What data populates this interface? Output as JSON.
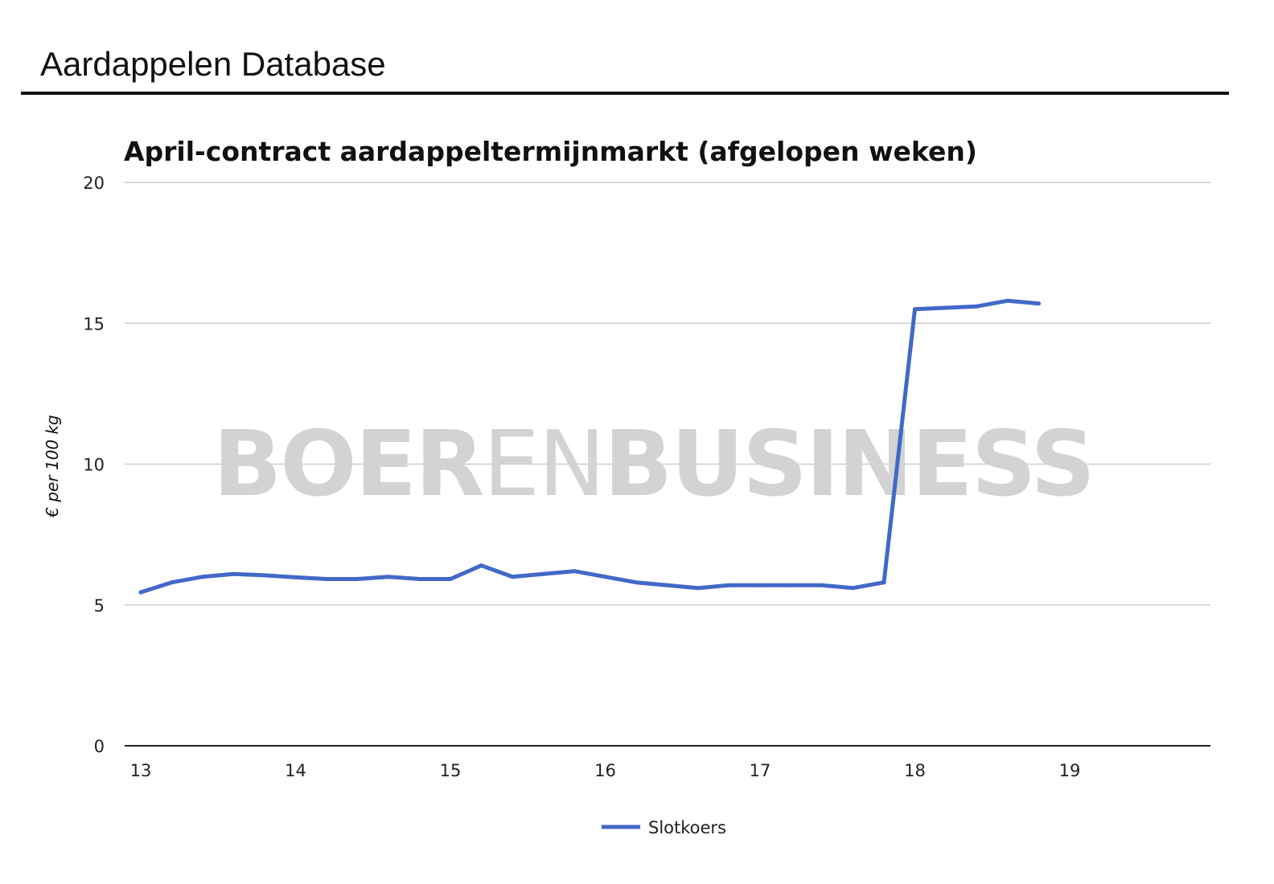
{
  "page": {
    "title": "Aardappelen Database"
  },
  "watermark": {
    "part1": "BOER",
    "part2": "EN",
    "part3": "BUSINESS"
  },
  "chart_data": {
    "type": "line",
    "title": "April-contract aardappeltermijnmarkt (afgelopen weken)",
    "xlabel": "",
    "ylabel": "€ per 100 kg",
    "xlim": [
      13,
      20
    ],
    "ylim": [
      0,
      20
    ],
    "x_ticks": [
      13,
      14,
      15,
      16,
      17,
      18,
      19
    ],
    "y_ticks": [
      0,
      5,
      10,
      15,
      20
    ],
    "grid": true,
    "legend_position": "bottom",
    "colors": {
      "series": "#4169C8",
      "grid": "#cccccc",
      "axis": "#222222"
    },
    "series": [
      {
        "name": "Slotkoers",
        "x": [
          13.0,
          13.2,
          13.4,
          13.6,
          13.8,
          14.0,
          14.2,
          14.4,
          14.6,
          14.8,
          15.0,
          15.2,
          15.4,
          15.6,
          15.8,
          16.0,
          16.2,
          16.4,
          16.6,
          16.8,
          17.0,
          17.2,
          17.4,
          17.6,
          17.8,
          18.0,
          18.2,
          18.4,
          18.6,
          18.8
        ],
        "values": [
          5.45,
          5.8,
          6.0,
          6.1,
          6.05,
          5.98,
          5.92,
          5.92,
          6.0,
          5.92,
          5.92,
          6.4,
          6.0,
          6.1,
          6.2,
          6.0,
          5.8,
          5.7,
          5.6,
          5.7,
          5.7,
          5.7,
          5.7,
          5.6,
          5.8,
          15.5,
          15.55,
          15.6,
          15.8,
          15.7
        ]
      }
    ]
  }
}
